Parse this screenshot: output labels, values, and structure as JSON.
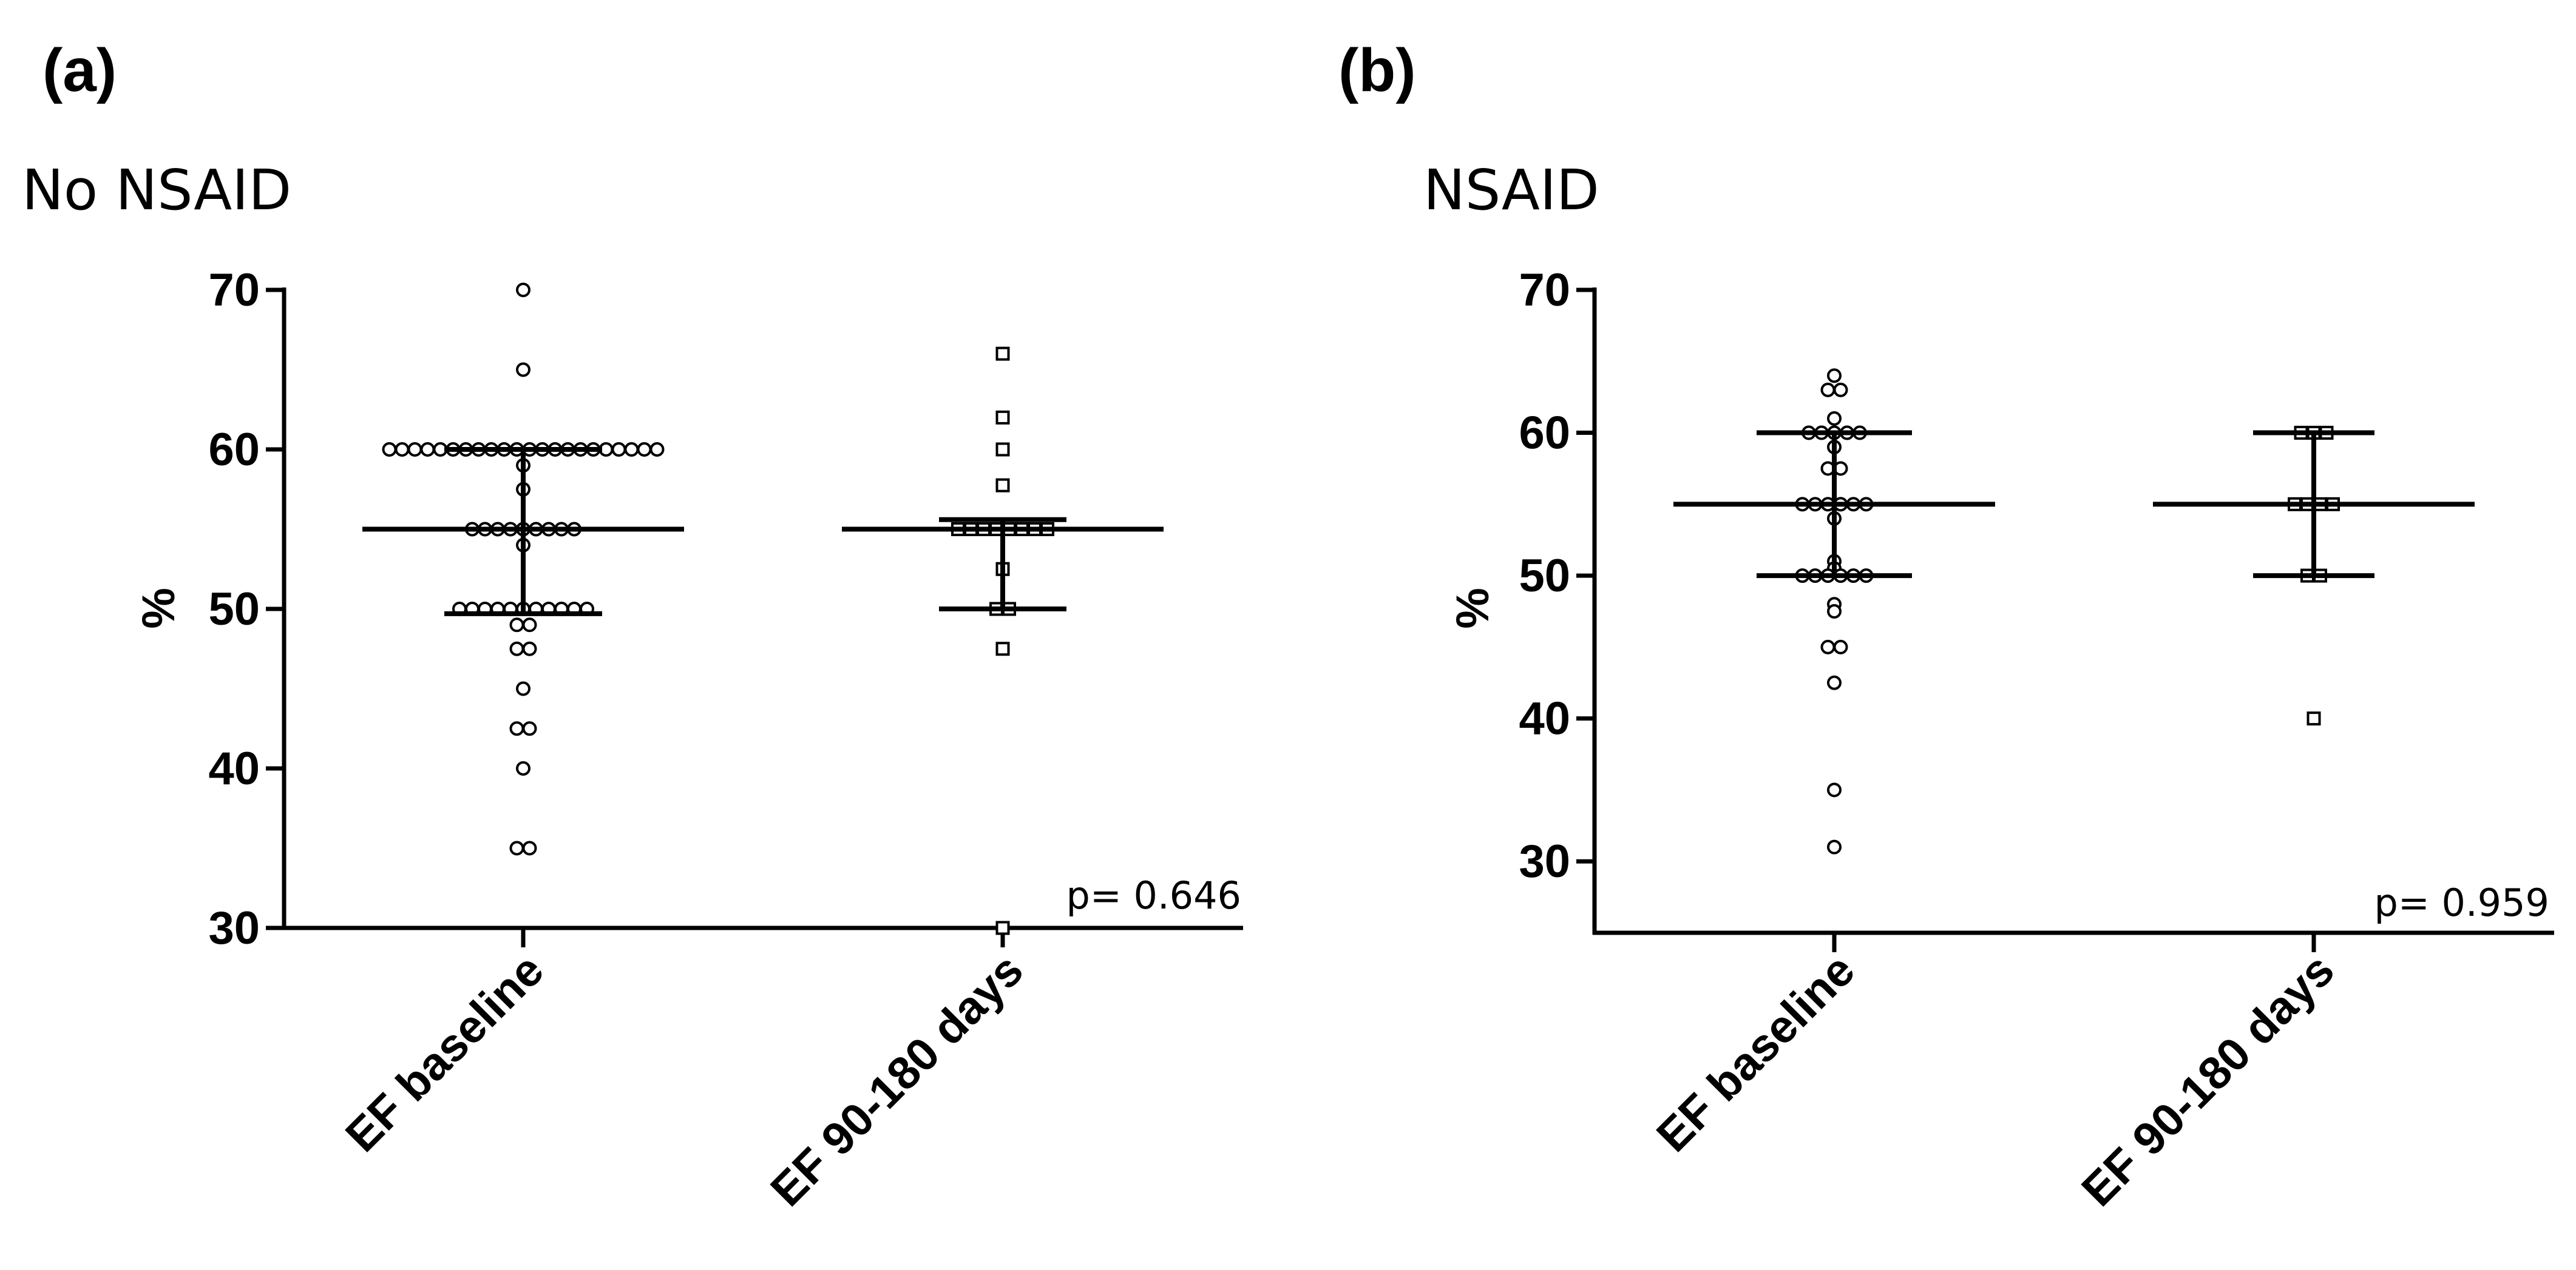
{
  "chart_data": [
    {
      "type": "scatter",
      "panel_label": "(a)",
      "title": "No NSAID",
      "ylabel": "%",
      "ylim": [
        30,
        70
      ],
      "yticks": [
        30,
        40,
        50,
        60,
        70
      ],
      "categories": [
        "EF baseline",
        "EF 90-180 days"
      ],
      "series": [
        {
          "name": "EF baseline",
          "marker": "circle",
          "values": [
            70,
            65,
            60,
            60,
            60,
            60,
            60,
            60,
            60,
            60,
            60,
            60,
            60,
            60,
            60,
            60,
            60,
            60,
            60,
            60,
            60,
            60,
            60,
            60,
            59,
            57.5,
            55,
            55,
            55,
            55,
            55,
            55,
            55,
            55,
            55,
            54,
            50,
            50,
            50,
            50,
            50,
            50,
            50,
            50,
            50,
            50,
            50,
            49,
            49,
            47.5,
            47.5,
            45,
            42.5,
            42.5,
            40,
            35,
            35
          ],
          "median": 55,
          "iqr": [
            49.7,
            60
          ]
        },
        {
          "name": "EF 90-180 days",
          "marker": "square",
          "values": [
            66,
            62,
            60,
            57.75,
            55,
            55,
            55,
            55,
            55,
            55,
            55,
            55,
            52.5,
            50,
            50,
            47.5,
            30
          ],
          "median": 55,
          "iqr": [
            50,
            55.6
          ]
        }
      ],
      "annotation": "p= 0.646"
    },
    {
      "type": "scatter",
      "panel_label": "(b)",
      "title": "NSAID",
      "ylabel": "%",
      "ylim": [
        25,
        70
      ],
      "yticks": [
        30,
        40,
        50,
        60,
        70
      ],
      "categories": [
        "EF baseline",
        "EF 90-180 days"
      ],
      "series": [
        {
          "name": "EF baseline",
          "marker": "circle",
          "values": [
            64,
            63,
            63,
            61,
            60,
            60,
            60,
            60,
            60,
            59,
            57.5,
            57.5,
            55,
            55,
            55,
            55,
            55,
            55,
            54,
            51,
            50.5,
            50,
            50,
            50,
            50,
            50,
            50,
            48,
            47.5,
            45,
            45,
            42.5,
            35,
            31
          ],
          "median": 55,
          "iqr": [
            50,
            60
          ]
        },
        {
          "name": "EF 90-180 days",
          "marker": "square",
          "values": [
            60,
            60,
            60,
            55,
            55,
            55,
            55,
            50,
            50,
            40
          ],
          "median": 55,
          "iqr": [
            50,
            60
          ]
        }
      ],
      "annotation": "p= 0.959"
    }
  ]
}
